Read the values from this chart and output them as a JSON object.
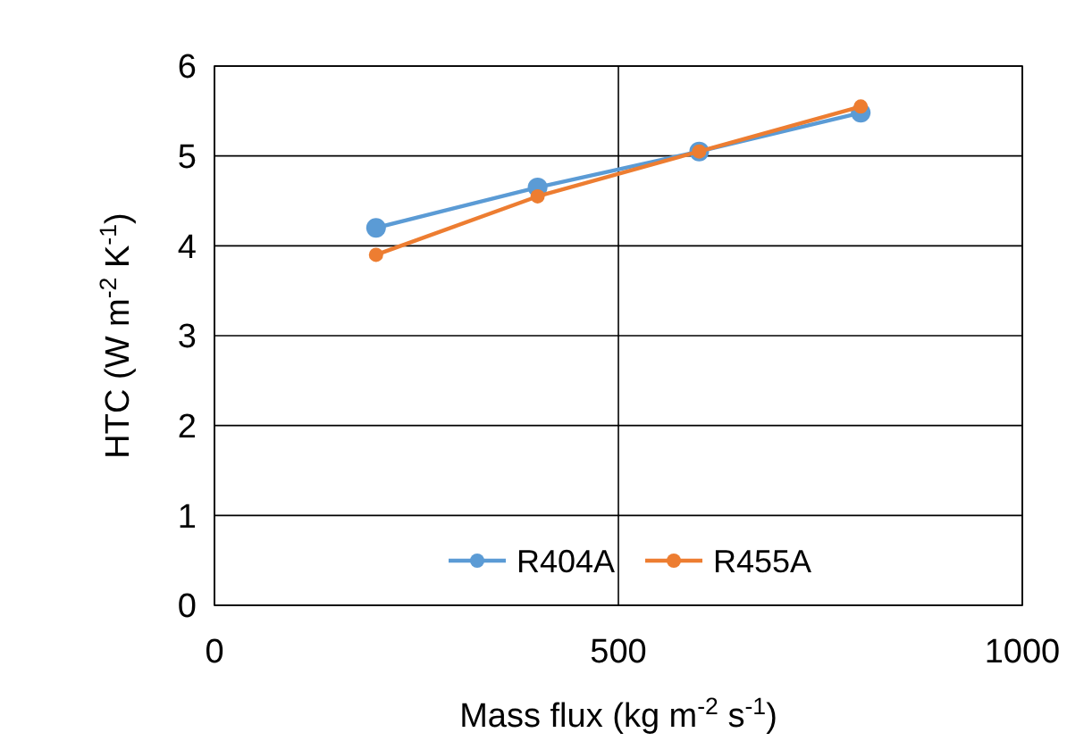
{
  "chart_data": {
    "type": "line",
    "xlabel": "Mass flux (kg m$^{-2}$ s$^{-1}$)",
    "ylabel": "HTC (W m$^{-2}$ K$^{-1}$)",
    "x": [
      200,
      400,
      600,
      800
    ],
    "series": [
      {
        "name": "R404A",
        "color": "#5b9bd5",
        "values": [
          4.2,
          4.65,
          5.05,
          5.48
        ]
      },
      {
        "name": "R455A",
        "color": "#ed7d31",
        "values": [
          3.9,
          4.55,
          5.05,
          5.55
        ]
      }
    ],
    "xlim": [
      0,
      1000
    ],
    "xticks": [
      0,
      500,
      1000
    ],
    "ylim": [
      0,
      6
    ],
    "yticks": [
      0,
      1,
      2,
      3,
      4,
      5,
      6
    ],
    "grid": true,
    "legend": "bottom",
    "marker": "circle",
    "line_style": "solid"
  }
}
